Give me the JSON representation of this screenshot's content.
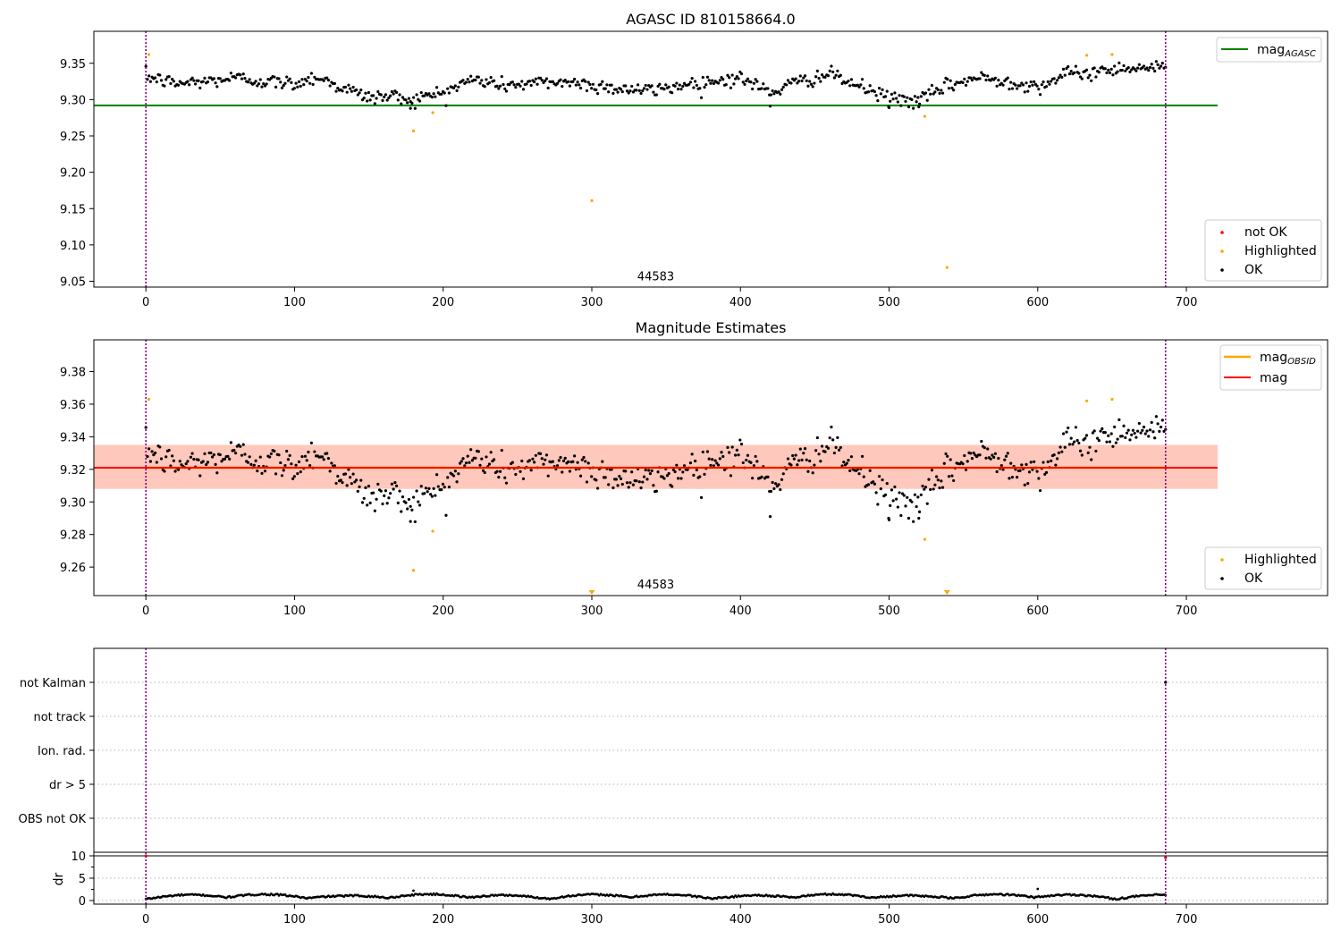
{
  "chart_data": [
    {
      "type": "scatter",
      "title": "AGASC ID 810158664.0",
      "xlabel": "",
      "ylabel": "",
      "xlim": [
        -35,
        795
      ],
      "ylim": [
        9.042,
        9.394
      ],
      "x_ticks": [
        0,
        100,
        200,
        300,
        400,
        500,
        600,
        700
      ],
      "y_ticks": [
        9.05,
        9.1,
        9.15,
        9.2,
        9.25,
        9.3,
        9.35
      ],
      "y_tick_labels": [
        "9.05",
        "9.10",
        "9.15",
        "9.20",
        "9.25",
        "9.30",
        "9.35"
      ],
      "obsid_label": {
        "text": "44583",
        "x": 343,
        "y": 9.051
      },
      "vlines": [
        0,
        686
      ],
      "hline": {
        "name": "mag_AGASC",
        "value": 9.292,
        "x_range": [
          -35,
          721
        ],
        "color": "#008000"
      },
      "legend_lines": [
        {
          "label_main": "mag",
          "label_sub": "AGASC",
          "color": "#008000"
        }
      ],
      "legend_points": [
        {
          "label": "not OK",
          "color": "#ff0000"
        },
        {
          "label": "Highlighted",
          "color": "#ffa500"
        },
        {
          "label": "OK",
          "color": "#000000"
        }
      ],
      "highlighted_points": [
        [
          2,
          9.362
        ],
        [
          180,
          9.257
        ],
        [
          193,
          9.282
        ],
        [
          300,
          9.161
        ],
        [
          524,
          9.277
        ],
        [
          539,
          9.069
        ],
        [
          633,
          9.361
        ],
        [
          650,
          9.362
        ]
      ],
      "ok_series": {
        "x_range": [
          0,
          686
        ],
        "count": 660,
        "anchors": [
          [
            0,
            9.332
          ],
          [
            20,
            9.322
          ],
          [
            40,
            9.325
          ],
          [
            60,
            9.33
          ],
          [
            80,
            9.325
          ],
          [
            100,
            9.322
          ],
          [
            115,
            9.332
          ],
          [
            130,
            9.318
          ],
          [
            150,
            9.303
          ],
          [
            165,
            9.305
          ],
          [
            180,
            9.3
          ],
          [
            200,
            9.31
          ],
          [
            220,
            9.328
          ],
          [
            240,
            9.32
          ],
          [
            260,
            9.322
          ],
          [
            280,
            9.325
          ],
          [
            300,
            9.32
          ],
          [
            320,
            9.315
          ],
          [
            340,
            9.312
          ],
          [
            360,
            9.32
          ],
          [
            380,
            9.325
          ],
          [
            400,
            9.33
          ],
          [
            420,
            9.31
          ],
          [
            440,
            9.325
          ],
          [
            460,
            9.335
          ],
          [
            480,
            9.318
          ],
          [
            500,
            9.302
          ],
          [
            520,
            9.298
          ],
          [
            540,
            9.32
          ],
          [
            560,
            9.33
          ],
          [
            580,
            9.325
          ],
          [
            600,
            9.318
          ],
          [
            620,
            9.335
          ],
          [
            640,
            9.338
          ],
          [
            660,
            9.345
          ],
          [
            686,
            9.343
          ]
        ],
        "noise": 0.009,
        "color": "#000000"
      },
      "extra_ok_points": [
        [
          178,
          9.288
        ],
        [
          420,
          9.291
        ],
        [
          500,
          9.289
        ],
        [
          520,
          9.29
        ]
      ]
    },
    {
      "type": "scatter",
      "title": "Magnitude Estimates",
      "xlabel": "",
      "ylabel": "",
      "xlim": [
        -35,
        795
      ],
      "ylim": [
        9.2425,
        9.3995
      ],
      "x_ticks": [
        0,
        100,
        200,
        300,
        400,
        500,
        600,
        700
      ],
      "y_ticks": [
        9.26,
        9.28,
        9.3,
        9.32,
        9.34,
        9.36,
        9.38
      ],
      "y_tick_labels": [
        "9.26",
        "9.28",
        "9.30",
        "9.32",
        "9.34",
        "9.36",
        "9.38"
      ],
      "obsid_label": {
        "text": "44583",
        "x": 343,
        "y": 9.247
      },
      "vlines": [
        0,
        686
      ],
      "mag_line": {
        "name": "mag",
        "value": 9.321,
        "x_range": [
          -35,
          721
        ],
        "color": "#ff0000"
      },
      "mag_band_outer": {
        "low": 9.308,
        "high": 9.335,
        "color": "#ffc0cb"
      },
      "mag_band_inner": {
        "x_range": [
          -35,
          721
        ],
        "low": 9.308,
        "high": 9.335,
        "color": "#ffa07a"
      },
      "obsid_mag_segment": {
        "x_range": [
          0,
          686
        ],
        "value": 9.321,
        "color": "#ffa500"
      },
      "legend_lines": [
        {
          "label_main": "mag",
          "label_sub": "OBSID",
          "color": "#ffa500"
        },
        {
          "label_main": "mag",
          "label_sub": "",
          "color": "#ff0000"
        }
      ],
      "legend_points": [
        {
          "label": "Highlighted",
          "color": "#ffa500"
        },
        {
          "label": "OK",
          "color": "#000000"
        }
      ],
      "highlighted_points": [
        [
          2,
          9.363
        ],
        [
          180,
          9.258
        ],
        [
          193,
          9.282
        ],
        [
          524,
          9.277
        ],
        [
          633,
          9.362
        ],
        [
          650,
          9.363
        ]
      ],
      "off_scale_markers": [
        300,
        539
      ],
      "ok_series_ref": 0,
      "extra_ok_points": [
        [
          178,
          9.288
        ],
        [
          420,
          9.291
        ],
        [
          500,
          9.289
        ],
        [
          520,
          9.29
        ]
      ]
    },
    {
      "type": "scatter",
      "title": "",
      "xlabel": "",
      "ylabel": "",
      "xlim": [
        -35,
        795
      ],
      "categories": [
        "not Kalman",
        "not track",
        "Ion. rad.",
        "dr > 5",
        "OBS not OK"
      ],
      "vlines": [
        0,
        686
      ],
      "flag_points": [
        {
          "category": "not Kalman",
          "x": 686,
          "color": "#000000"
        }
      ]
    },
    {
      "type": "scatter",
      "title": "",
      "xlabel": "",
      "ylabel": "dr",
      "xlim": [
        -35,
        795
      ],
      "ylim": [
        -0.8,
        10.8
      ],
      "y_ticks": [
        0,
        5,
        10
      ],
      "y_tick_labels": [
        "0",
        "5",
        "10"
      ],
      "vlines": [
        0,
        686
      ],
      "threshold_hline": 10,
      "series": {
        "x_range": [
          0,
          686
        ],
        "count": 660,
        "base": 0.8,
        "amplitude": 0.7,
        "color": "#000000"
      },
      "extra_points": [
        [
          180,
          2.2
        ],
        [
          600,
          2.6
        ]
      ],
      "red_points": [
        [
          0,
          10.0
        ],
        [
          686,
          9.6
        ]
      ]
    }
  ]
}
